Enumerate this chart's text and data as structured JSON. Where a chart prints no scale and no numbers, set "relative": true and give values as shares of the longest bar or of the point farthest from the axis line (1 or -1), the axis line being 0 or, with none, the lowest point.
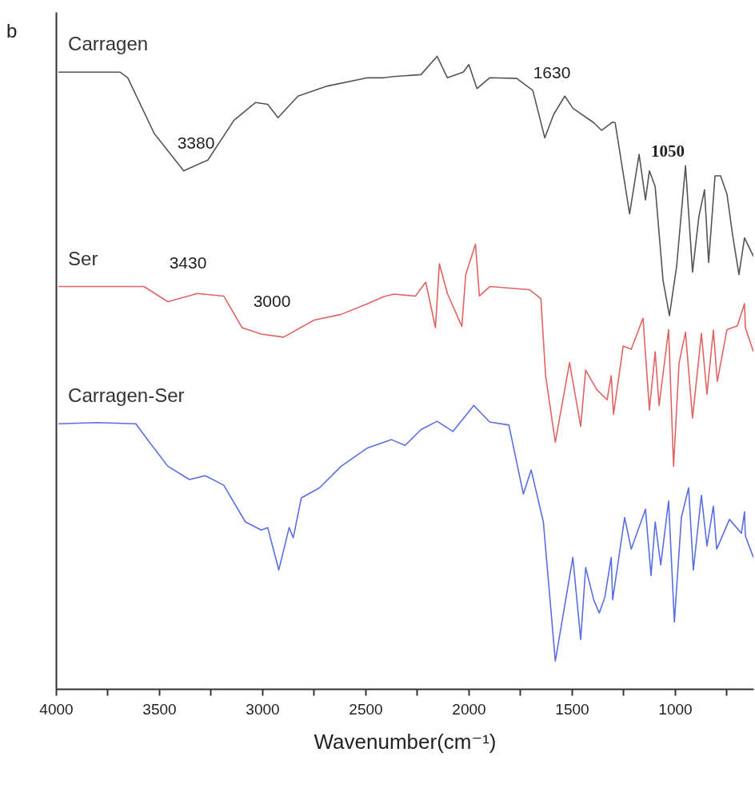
{
  "chart_data": {
    "type": "line",
    "relative": true,
    "xlabel": "Wavenumber(cm⁻¹)",
    "grid": false,
    "marker": "none",
    "line_style": "solid",
    "xlim": [
      4000,
      620
    ],
    "xticks": [
      4000,
      {
        "value": 3750,
        "label": null
      },
      3500,
      {
        "value": 3250,
        "label": null
      },
      3000,
      {
        "value": 2750,
        "label": null
      },
      2500,
      {
        "value": 2250,
        "label": null
      },
      2000,
      {
        "value": 1750,
        "label": null
      },
      1500,
      {
        "value": 1250,
        "label": null
      },
      1000,
      {
        "value": 750,
        "label": null
      }
    ],
    "ylim": [
      0,
      1.07
    ],
    "annotations": [
      "b",
      "3380",
      "1630",
      "1050",
      "3430",
      "3000"
    ],
    "series": [
      {
        "name": "Carragen",
        "color": "#555555",
        "x": [
          3988,
          3690,
          3652,
          3524,
          3381,
          3264,
          3137,
          3032,
          2974,
          2924,
          2827,
          2684,
          2490,
          2413,
          2362,
          2231,
          2153,
          2103,
          2026,
          1999,
          1960,
          1898,
          1767,
          1689,
          1631,
          1588,
          1534,
          1495,
          1394,
          1356,
          1302,
          1290,
          1220,
          1174,
          1143,
          1124,
          1096,
          1058,
          1027,
          992,
          949,
          915,
          884,
          857,
          837,
          806,
          779,
          748,
          721,
          690,
          663,
          620
        ],
        "values": [
          0.975,
          0.975,
          0.966,
          0.878,
          0.819,
          0.836,
          0.899,
          0.927,
          0.924,
          0.903,
          0.937,
          0.953,
          0.966,
          0.966,
          0.968,
          0.971,
          1.0,
          0.966,
          0.975,
          0.987,
          0.949,
          0.966,
          0.965,
          0.946,
          0.871,
          0.908,
          0.937,
          0.918,
          0.895,
          0.883,
          0.896,
          0.895,
          0.751,
          0.845,
          0.773,
          0.819,
          0.794,
          0.646,
          0.59,
          0.668,
          0.827,
          0.659,
          0.747,
          0.789,
          0.674,
          0.811,
          0.811,
          0.782,
          0.718,
          0.655,
          0.713,
          0.684
        ]
      },
      {
        "name": "Ser",
        "color": "#e06464",
        "x": [
          3988,
          3574,
          3458,
          3315,
          3187,
          3098,
          3005,
          2897,
          2749,
          2618,
          2490,
          2413,
          2362,
          2258,
          2208,
          2161,
          2142,
          2103,
          2033,
          2014,
          1967,
          1948,
          1898,
          1704,
          1650,
          1627,
          1580,
          1511,
          1457,
          1433,
          1379,
          1329,
          1309,
          1298,
          1251,
          1212,
          1155,
          1124,
          1096,
          1077,
          1031,
          1007,
          980,
          949,
          915,
          872,
          845,
          814,
          795,
          748,
          698,
          663,
          659,
          620
        ],
        "values": [
          0.636,
          0.636,
          0.612,
          0.625,
          0.621,
          0.571,
          0.561,
          0.556,
          0.583,
          0.592,
          0.609,
          0.62,
          0.624,
          0.621,
          0.643,
          0.571,
          0.672,
          0.625,
          0.573,
          0.655,
          0.703,
          0.621,
          0.636,
          0.631,
          0.617,
          0.495,
          0.39,
          0.516,
          0.415,
          0.504,
          0.473,
          0.457,
          0.495,
          0.434,
          0.542,
          0.537,
          0.586,
          0.441,
          0.533,
          0.448,
          0.568,
          0.352,
          0.516,
          0.564,
          0.428,
          0.562,
          0.466,
          0.567,
          0.486,
          0.568,
          0.574,
          0.609,
          0.571,
          0.533
        ]
      },
      {
        "name": "Carragen-Ser",
        "color": "#5a6fe0",
        "x": [
          3988,
          3800,
          3613,
          3547,
          3458,
          3353,
          3276,
          3187,
          3082,
          3005,
          2974,
          2920,
          2870,
          2850,
          2811,
          2722,
          2618,
          2490,
          2374,
          2308,
          2231,
          2153,
          2076,
          1975,
          1898,
          1805,
          1735,
          1697,
          1638,
          1580,
          1495,
          1457,
          1433,
          1394,
          1367,
          1340,
          1309,
          1302,
          1244,
          1212,
          1143,
          1116,
          1096,
          1069,
          1031,
          1003,
          969,
          934,
          911,
          872,
          845,
          814,
          798,
          736,
          678,
          663,
          659,
          620
        ],
        "values": [
          0.419,
          0.421,
          0.419,
          0.39,
          0.352,
          0.331,
          0.337,
          0.322,
          0.264,
          0.251,
          0.255,
          0.188,
          0.255,
          0.239,
          0.302,
          0.318,
          0.352,
          0.381,
          0.394,
          0.385,
          0.41,
          0.423,
          0.407,
          0.448,
          0.422,
          0.417,
          0.308,
          0.346,
          0.264,
          0.044,
          0.208,
          0.078,
          0.192,
          0.141,
          0.12,
          0.145,
          0.208,
          0.141,
          0.271,
          0.221,
          0.284,
          0.179,
          0.264,
          0.196,
          0.297,
          0.106,
          0.271,
          0.318,
          0.188,
          0.306,
          0.226,
          0.289,
          0.221,
          0.268,
          0.246,
          0.28,
          0.242,
          0.208
        ]
      }
    ]
  }
}
